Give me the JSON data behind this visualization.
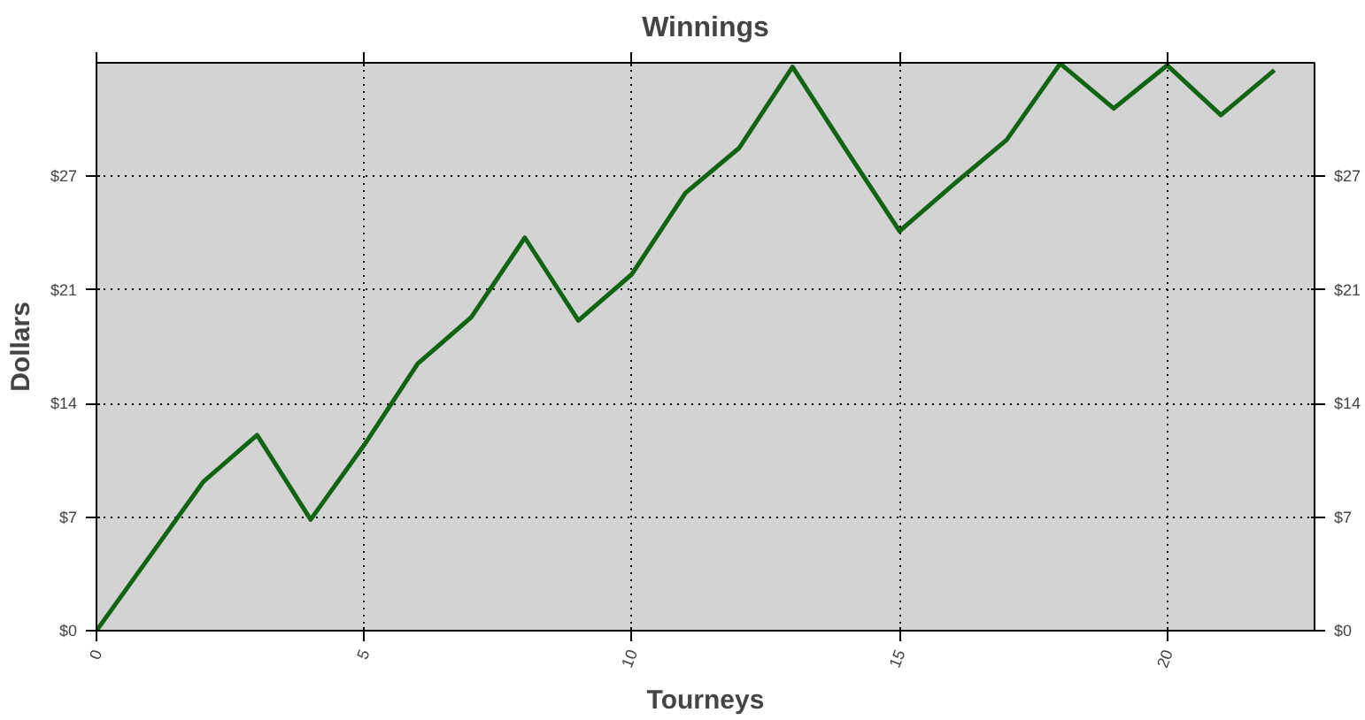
{
  "chart_data": {
    "type": "line",
    "title": "Winnings",
    "xlabel": "Tourneys",
    "ylabel": "Dollars",
    "x": [
      0,
      1,
      2,
      3,
      4,
      5,
      6,
      7,
      8,
      9,
      10,
      11,
      12,
      13,
      14,
      15,
      16,
      17,
      18,
      19,
      20,
      21,
      22
    ],
    "series": [
      {
        "color": "#116411",
        "values": [
          0,
          4.5,
          9.0,
          11.8,
          6.7,
          11.2,
          16.1,
          18.9,
          23.7,
          18.7,
          21.5,
          26.4,
          29.1,
          34.0,
          29.0,
          24.1,
          26.9,
          29.6,
          34.2,
          31.5,
          34.1,
          31.1,
          33.8
        ]
      }
    ],
    "xlim": [
      0,
      22.75
    ],
    "xticks": [
      0,
      5,
      10,
      15,
      20
    ],
    "ylim": [
      0,
      34.25
    ],
    "yticks": [
      {
        "value": 0,
        "label": "$0"
      },
      {
        "value": 6.85,
        "label": "$7"
      },
      {
        "value": 13.7,
        "label": "$14"
      },
      {
        "value": 20.55,
        "label": "$21"
      },
      {
        "value": 27.4,
        "label": "$27"
      }
    ],
    "y2lim": [
      0,
      34.25
    ],
    "y2ticks": [
      {
        "value": 0,
        "label": "$0"
      },
      {
        "value": 6.85,
        "label": "$7"
      },
      {
        "value": 13.7,
        "label": "$14"
      },
      {
        "value": 20.55,
        "label": "$21"
      },
      {
        "value": 27.4,
        "label": "$27"
      }
    ],
    "grid": true,
    "marker": "none",
    "line_style": "solid"
  }
}
